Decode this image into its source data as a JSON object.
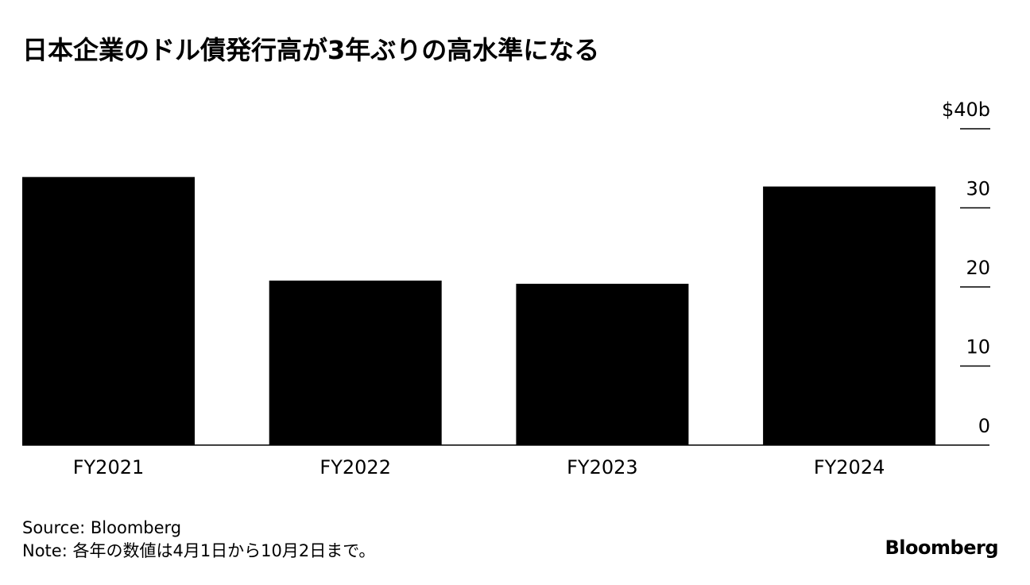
{
  "chart_data": {
    "type": "bar",
    "title": "日本企業のドル債発行高が3年ぶりの高水準になる",
    "categories": [
      "FY2021",
      "FY2022",
      "FY2023",
      "FY2024"
    ],
    "values": [
      33.9,
      20.8,
      20.4,
      32.7
    ],
    "color": "#000000",
    "ylim": [
      0,
      40
    ],
    "yticks": [
      0,
      10,
      20,
      30,
      {
        "value": 40,
        "label": "$40b"
      }
    ]
  },
  "footer": {
    "source": "Source: Bloomberg",
    "note": "Note: 各年の数値は4月1日から10月2日まで。",
    "logo": "Bloomberg"
  }
}
